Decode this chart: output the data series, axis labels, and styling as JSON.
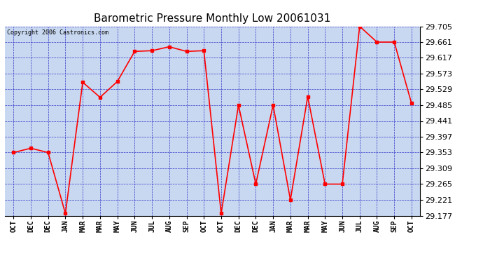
{
  "title": "Barometric Pressure Monthly Low 20061031",
  "copyright": "Copyright 2006 Castronics.com",
  "x_labels": [
    "OCT",
    "DEC",
    "DEC",
    "JAN",
    "MAR",
    "MAR",
    "MAY",
    "JUN",
    "JUL",
    "AUG",
    "SEP",
    "OCT",
    "OCT",
    "DEC",
    "DEC",
    "JAN",
    "MAR",
    "MAR",
    "MAY",
    "JUN",
    "JUL",
    "AUG",
    "SEP",
    "OCT"
  ],
  "y_values": [
    29.353,
    29.365,
    29.353,
    29.183,
    29.549,
    29.507,
    29.551,
    29.635,
    29.637,
    29.648,
    29.635,
    29.637,
    29.183,
    29.485,
    29.265,
    29.485,
    29.221,
    29.509,
    29.265,
    29.265,
    29.705,
    29.661,
    29.661,
    29.49
  ],
  "ylim_min": 29.177,
  "ylim_max": 29.705,
  "yticks": [
    29.177,
    29.221,
    29.265,
    29.309,
    29.353,
    29.397,
    29.441,
    29.485,
    29.529,
    29.573,
    29.617,
    29.661,
    29.705
  ],
  "line_color": "red",
  "marker": "s",
  "marker_size": 2.5,
  "bg_color": "#c8d8f0",
  "grid_color": "#0000bb",
  "title_fontsize": 11,
  "label_fontsize": 7,
  "tick_fontsize": 8,
  "copyright_fontsize": 6
}
